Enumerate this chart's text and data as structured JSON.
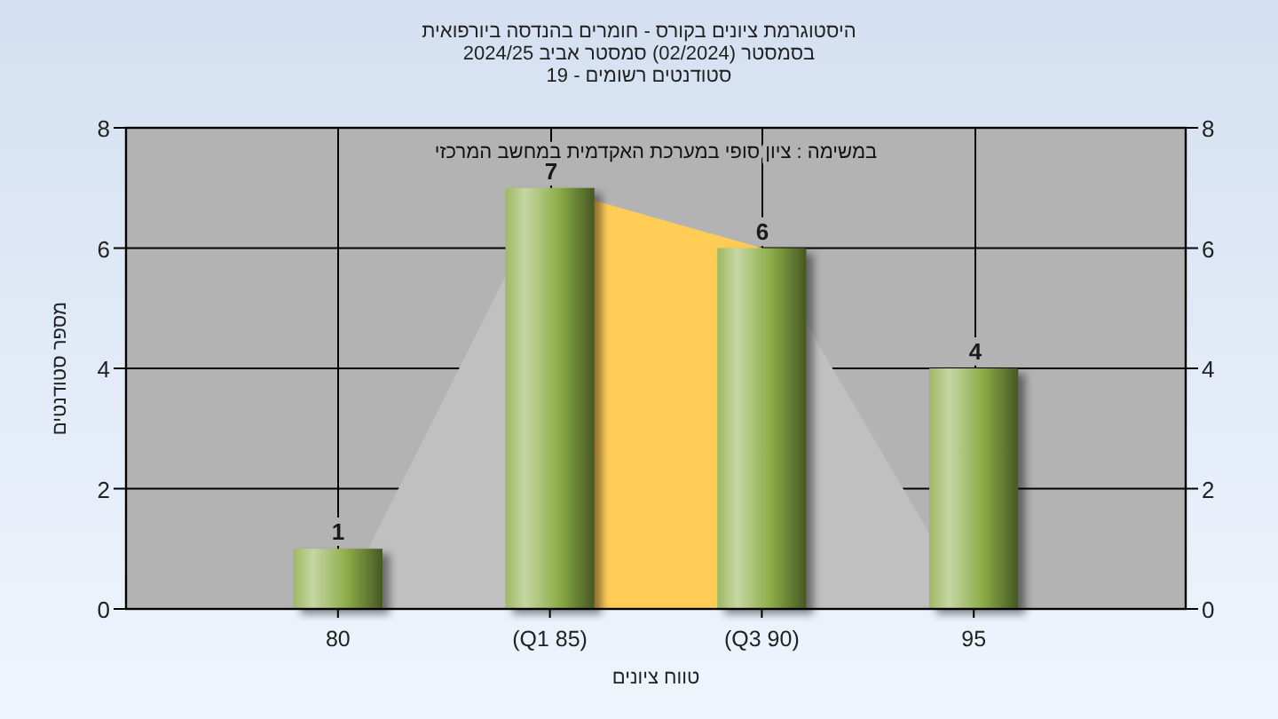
{
  "chart_data": {
    "type": "bar",
    "title": "היסטוגרמת ציונים בקורס - חומרים בהנדסה ביורפואית\nבסמסטר  (02/2024)  סמסטר אביב 2024/25\nסטודנטים רשומים - 19",
    "xlabel": "טווח ציונים",
    "ylabel": "מספר סטודנטים",
    "annotations": [
      "במשימה : ציון סופי במערכת האקדמית במחשב המרכזי"
    ],
    "categories": [
      "80",
      "(Q1 85)",
      "(Q3 90)",
      "95"
    ],
    "series": [
      {
        "type": "area",
        "color": "#c0c0c0",
        "values": [
          0,
          7,
          6,
          0
        ]
      },
      {
        "type": "area",
        "color": "#ffcc55",
        "values": [
          null,
          7,
          6,
          null
        ]
      },
      {
        "color": "#8cad47",
        "values": [
          1,
          7,
          6,
          4
        ],
        "value_labels": [
          "1",
          "7",
          "6",
          "4"
        ]
      }
    ],
    "ylim": [
      0,
      8
    ],
    "yticks": [
      0,
      2,
      4,
      6,
      8
    ],
    "y2lim": [
      0,
      8
    ],
    "y2ticks": [
      0,
      2,
      4,
      6,
      8
    ],
    "grid": true
  }
}
